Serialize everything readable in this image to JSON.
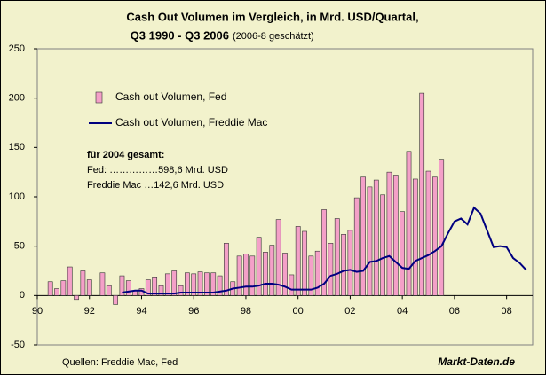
{
  "chart_data": {
    "type": "bar_line",
    "title": "Cash Out Volumen im Vergleich, in Mrd. USD/Quartal,",
    "subtitle": "Q3 1990 - Q3 2006",
    "subtitle_note": "(2006-8 geschätzt)",
    "annotations": [
      "für 2004 gesamt:",
      "Fed: ……………598,6 Mrd. USD",
      "Freddie Mac …142,6 Mrd. USD"
    ],
    "source": "Quellen: Freddie Mac, Fed",
    "brand": "Markt-Daten.de",
    "legend": "upper left",
    "xlim": [
      1990,
      2009
    ],
    "xticks": [
      {
        "value": 1990,
        "label": "90"
      },
      {
        "value": 1992,
        "label": "92"
      },
      {
        "value": 1994,
        "label": "94"
      },
      {
        "value": 1996,
        "label": "96"
      },
      {
        "value": 1998,
        "label": "98"
      },
      {
        "value": 2000,
        "label": "00"
      },
      {
        "value": 2002,
        "label": "02"
      },
      {
        "value": 2004,
        "label": "04"
      },
      {
        "value": 2006,
        "label": "06"
      },
      {
        "value": 2008,
        "label": "08"
      }
    ],
    "ylim": [
      -50,
      250
    ],
    "yticks": [
      -50,
      0,
      50,
      100,
      150,
      200,
      250
    ],
    "series": [
      {
        "name": "Cash out Volumen, Fed",
        "kind": "bar",
        "color": "#f4a0c8",
        "x": [
          1990.5,
          1990.75,
          1991,
          1991.25,
          1991.5,
          1991.75,
          1992,
          1992.25,
          1992.5,
          1992.75,
          1993,
          1993.25,
          1993.5,
          1993.75,
          1994,
          1994.25,
          1994.5,
          1994.75,
          1995,
          1995.25,
          1995.5,
          1995.75,
          1996,
          1996.25,
          1996.5,
          1996.75,
          1997,
          1997.25,
          1997.5,
          1997.75,
          1998,
          1998.25,
          1998.5,
          1998.75,
          1999,
          1999.25,
          1999.5,
          1999.75,
          2000,
          2000.25,
          2000.5,
          2000.75,
          2001,
          2001.25,
          2001.5,
          2001.75,
          2002,
          2002.25,
          2002.5,
          2002.75,
          2003,
          2003.25,
          2003.5,
          2003.75,
          2004,
          2004.25,
          2004.5,
          2004.75,
          2005,
          2005.25,
          2005.5
        ],
        "values": [
          14,
          7,
          15,
          29,
          -4,
          25,
          16,
          0,
          23,
          10,
          -9,
          20,
          15,
          5,
          7,
          16,
          18,
          10,
          22,
          25,
          10,
          23,
          22,
          24,
          23,
          23,
          20,
          53,
          14,
          40,
          42,
          40,
          59,
          44,
          51,
          77,
          43,
          21,
          70,
          65,
          40,
          45,
          87,
          53,
          78,
          62,
          66,
          99,
          120,
          110,
          117,
          102,
          125,
          122,
          85,
          146,
          118,
          205,
          126,
          120,
          138
        ]
      },
      {
        "name": "Cash out Volumen, Freddie Mac",
        "kind": "line",
        "color": "#000080",
        "x": [
          1993.25,
          1993.5,
          1993.75,
          1994,
          1994.25,
          1994.5,
          1994.75,
          1995,
          1995.25,
          1995.5,
          1995.75,
          1996,
          1996.25,
          1996.5,
          1996.75,
          1997,
          1997.25,
          1997.5,
          1997.75,
          1998,
          1998.25,
          1998.5,
          1998.75,
          1999,
          1999.25,
          1999.5,
          1999.75,
          2000,
          2000.25,
          2000.5,
          2000.75,
          2001,
          2001.25,
          2001.5,
          2001.75,
          2002,
          2002.25,
          2002.5,
          2002.75,
          2003,
          2003.25,
          2003.5,
          2003.75,
          2004,
          2004.25,
          2004.5,
          2004.75,
          2005,
          2005.25,
          2005.5,
          2005.75,
          2006,
          2006.25,
          2006.5,
          2006.75,
          2007,
          2007.25,
          2007.5,
          2007.75,
          2008,
          2008.25,
          2008.5,
          2008.75
        ],
        "values": [
          3,
          4,
          5,
          5,
          2,
          2,
          2,
          2,
          2,
          3,
          3,
          3,
          3,
          3,
          3,
          4,
          5,
          7,
          8,
          9,
          9,
          10,
          12,
          12,
          11,
          9,
          6,
          6,
          6,
          6,
          8,
          12,
          20,
          22,
          25,
          26,
          24,
          25,
          34,
          35,
          38,
          40,
          34,
          28,
          27,
          35,
          38,
          41,
          45,
          50,
          63,
          75,
          78,
          72,
          89,
          83,
          66,
          49,
          50,
          49,
          38,
          33,
          26
        ]
      }
    ]
  }
}
